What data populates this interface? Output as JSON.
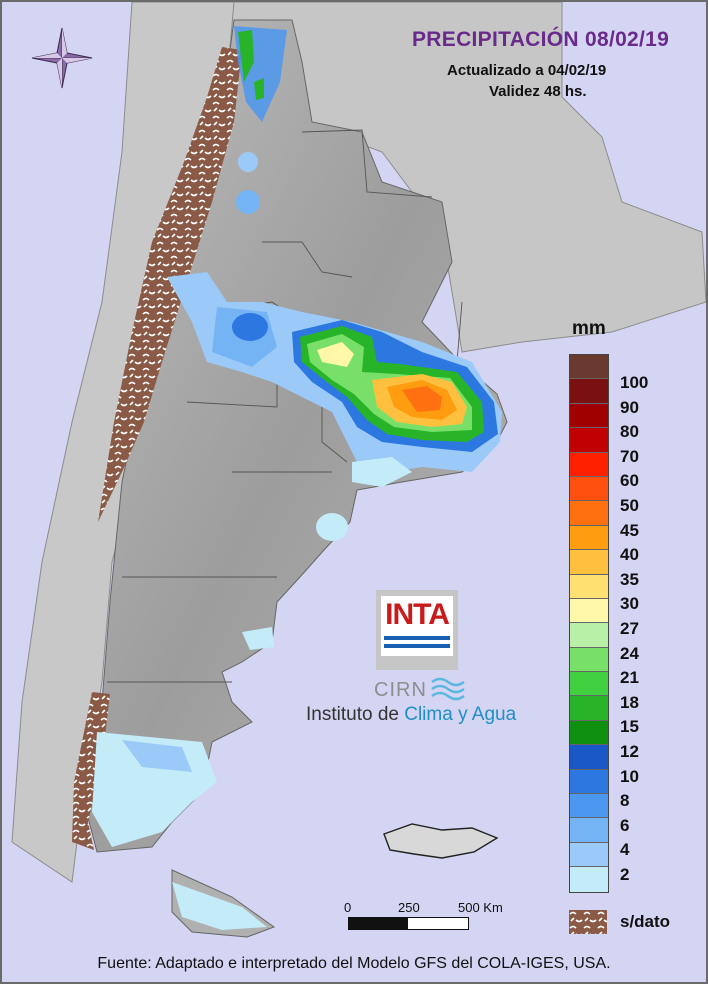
{
  "header": {
    "title": "PRECIPITACIÓN 08/02/19",
    "updated": "Actualizado a 04/02/19",
    "validity": "Validez 48 hs."
  },
  "legend": {
    "unit": "mm",
    "colors": [
      "#6b3a2e",
      "#7a1010",
      "#a00000",
      "#c00000",
      "#ff2000",
      "#ff5010",
      "#ff7010",
      "#ff9c10",
      "#ffc040",
      "#ffe070",
      "#fff8a8",
      "#b8f0a8",
      "#78e068",
      "#40d040",
      "#28b428",
      "#109010",
      "#1a58c8",
      "#2c78e0",
      "#4c98f0",
      "#74b4f4",
      "#9ccaf8",
      "#c4ecf8"
    ],
    "labels": [
      "100",
      "90",
      "80",
      "70",
      "60",
      "50",
      "45",
      "40",
      "35",
      "30",
      "27",
      "24",
      "21",
      "18",
      "15",
      "12",
      "10",
      "8",
      "6",
      "4",
      "2"
    ],
    "no_data_label": "s/dato",
    "no_data_color": "#8a5a46"
  },
  "scale": {
    "ticks": [
      "0",
      "250",
      "500 Km"
    ]
  },
  "logo": {
    "brand": "INTA",
    "center": "CIRN",
    "institute_prefix": "Instituto de ",
    "institute_accent": "Clima y Agua"
  },
  "footer": {
    "source": "Fuente: Adaptado e interpretado del Modelo GFS del COLA-IGES, USA."
  },
  "colors": {
    "ocean": "#d4d4f3",
    "land_neighbors": "#c4c4c4",
    "relief": "#a9a9a9",
    "title": "#6a2a8c"
  }
}
